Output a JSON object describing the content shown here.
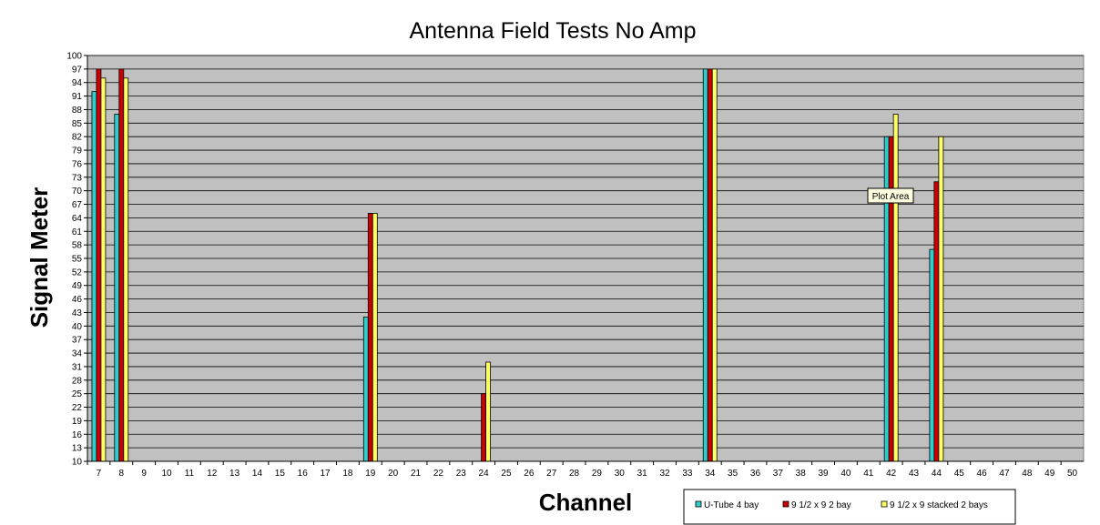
{
  "chart_data": {
    "type": "bar",
    "title": "Antenna Field Tests No Amp",
    "xlabel": "Channel",
    "ylabel": "Signal Meter",
    "ylim": [
      10,
      100
    ],
    "yticks": [
      10,
      13,
      16,
      19,
      22,
      25,
      28,
      31,
      34,
      37,
      40,
      43,
      46,
      49,
      52,
      55,
      58,
      61,
      64,
      67,
      70,
      73,
      76,
      79,
      82,
      85,
      88,
      91,
      94,
      97,
      100
    ],
    "grid": "horizontal",
    "legend_position": "bottom-right",
    "categories": [
      "7",
      "8",
      "9",
      "10",
      "11",
      "12",
      "13",
      "14",
      "15",
      "16",
      "17",
      "18",
      "19",
      "20",
      "21",
      "22",
      "23",
      "24",
      "25",
      "26",
      "27",
      "28",
      "29",
      "30",
      "31",
      "32",
      "33",
      "34",
      "35",
      "36",
      "37",
      "38",
      "39",
      "40",
      "41",
      "42",
      "43",
      "44",
      "45",
      "46",
      "47",
      "48",
      "49",
      "50"
    ],
    "series": [
      {
        "name": "U-Tube 4 bay",
        "color": "#33cccc",
        "values": [
          92,
          87,
          null,
          null,
          null,
          null,
          null,
          null,
          null,
          null,
          null,
          null,
          42,
          null,
          null,
          null,
          null,
          null,
          null,
          null,
          null,
          null,
          null,
          null,
          null,
          null,
          null,
          97,
          null,
          null,
          null,
          null,
          null,
          null,
          null,
          82,
          null,
          57,
          null,
          null,
          null,
          null,
          null,
          null
        ]
      },
      {
        "name": "9 1/2 x 9 2 bay",
        "color": "#cc0000",
        "values": [
          97,
          97,
          null,
          null,
          null,
          null,
          null,
          null,
          null,
          null,
          null,
          null,
          65,
          null,
          null,
          null,
          null,
          25,
          null,
          null,
          null,
          null,
          null,
          null,
          null,
          null,
          null,
          97,
          null,
          null,
          null,
          null,
          null,
          null,
          null,
          82,
          null,
          72,
          null,
          null,
          null,
          null,
          null,
          null
        ]
      },
      {
        "name": "9 1/2 x 9 stacked 2 bays",
        "color": "#ffff66",
        "values": [
          95,
          95,
          null,
          null,
          null,
          null,
          null,
          null,
          null,
          null,
          null,
          null,
          65,
          null,
          null,
          null,
          null,
          32,
          null,
          null,
          null,
          null,
          null,
          null,
          null,
          null,
          null,
          97,
          null,
          null,
          null,
          null,
          null,
          null,
          null,
          87,
          null,
          82,
          null,
          null,
          null,
          null,
          null,
          null
        ]
      }
    ],
    "plot_background": "#c0c0c0",
    "tooltip": "Plot Area"
  }
}
